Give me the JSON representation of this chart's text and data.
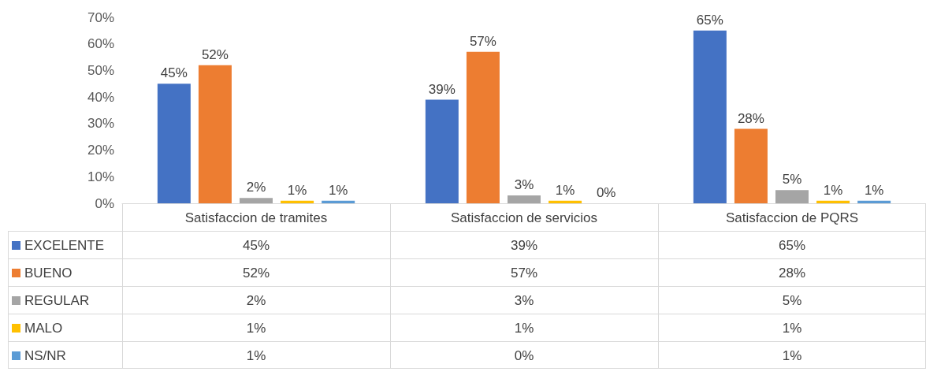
{
  "chart_data": {
    "type": "bar",
    "categories": [
      "Satisfaccion de tramites",
      "Satisfaccion de servicios",
      "Satisfaccion de PQRS"
    ],
    "series": [
      {
        "name": "EXCELENTE",
        "color": "#4472c4",
        "values": [
          45,
          39,
          65
        ],
        "value_labels": [
          "45%",
          "39%",
          "65%"
        ]
      },
      {
        "name": "BUENO",
        "color": "#ed7d31",
        "values": [
          52,
          57,
          28
        ],
        "value_labels": [
          "52%",
          "57%",
          "28%"
        ]
      },
      {
        "name": "REGULAR",
        "color": "#a5a5a5",
        "values": [
          2,
          3,
          5
        ],
        "value_labels": [
          "2%",
          "3%",
          "5%"
        ]
      },
      {
        "name": "MALO",
        "color": "#ffc000",
        "values": [
          1,
          1,
          1
        ],
        "value_labels": [
          "1%",
          "1%",
          "1%"
        ]
      },
      {
        "name": "NS/NR",
        "color": "#5b9bd5",
        "values": [
          1,
          0,
          1
        ],
        "value_labels": [
          "1%",
          "0%",
          "1%"
        ]
      }
    ],
    "ylim": [
      0,
      70
    ],
    "yticks": [
      {
        "value": 0,
        "label": "0%"
      },
      {
        "value": 10,
        "label": "10%"
      },
      {
        "value": 20,
        "label": "20%"
      },
      {
        "value": 30,
        "label": "30%"
      },
      {
        "value": 40,
        "label": "40%"
      },
      {
        "value": 50,
        "label": "50%"
      },
      {
        "value": 60,
        "label": "60%"
      },
      {
        "value": 70,
        "label": "70%"
      }
    ],
    "legend": "bottom"
  }
}
